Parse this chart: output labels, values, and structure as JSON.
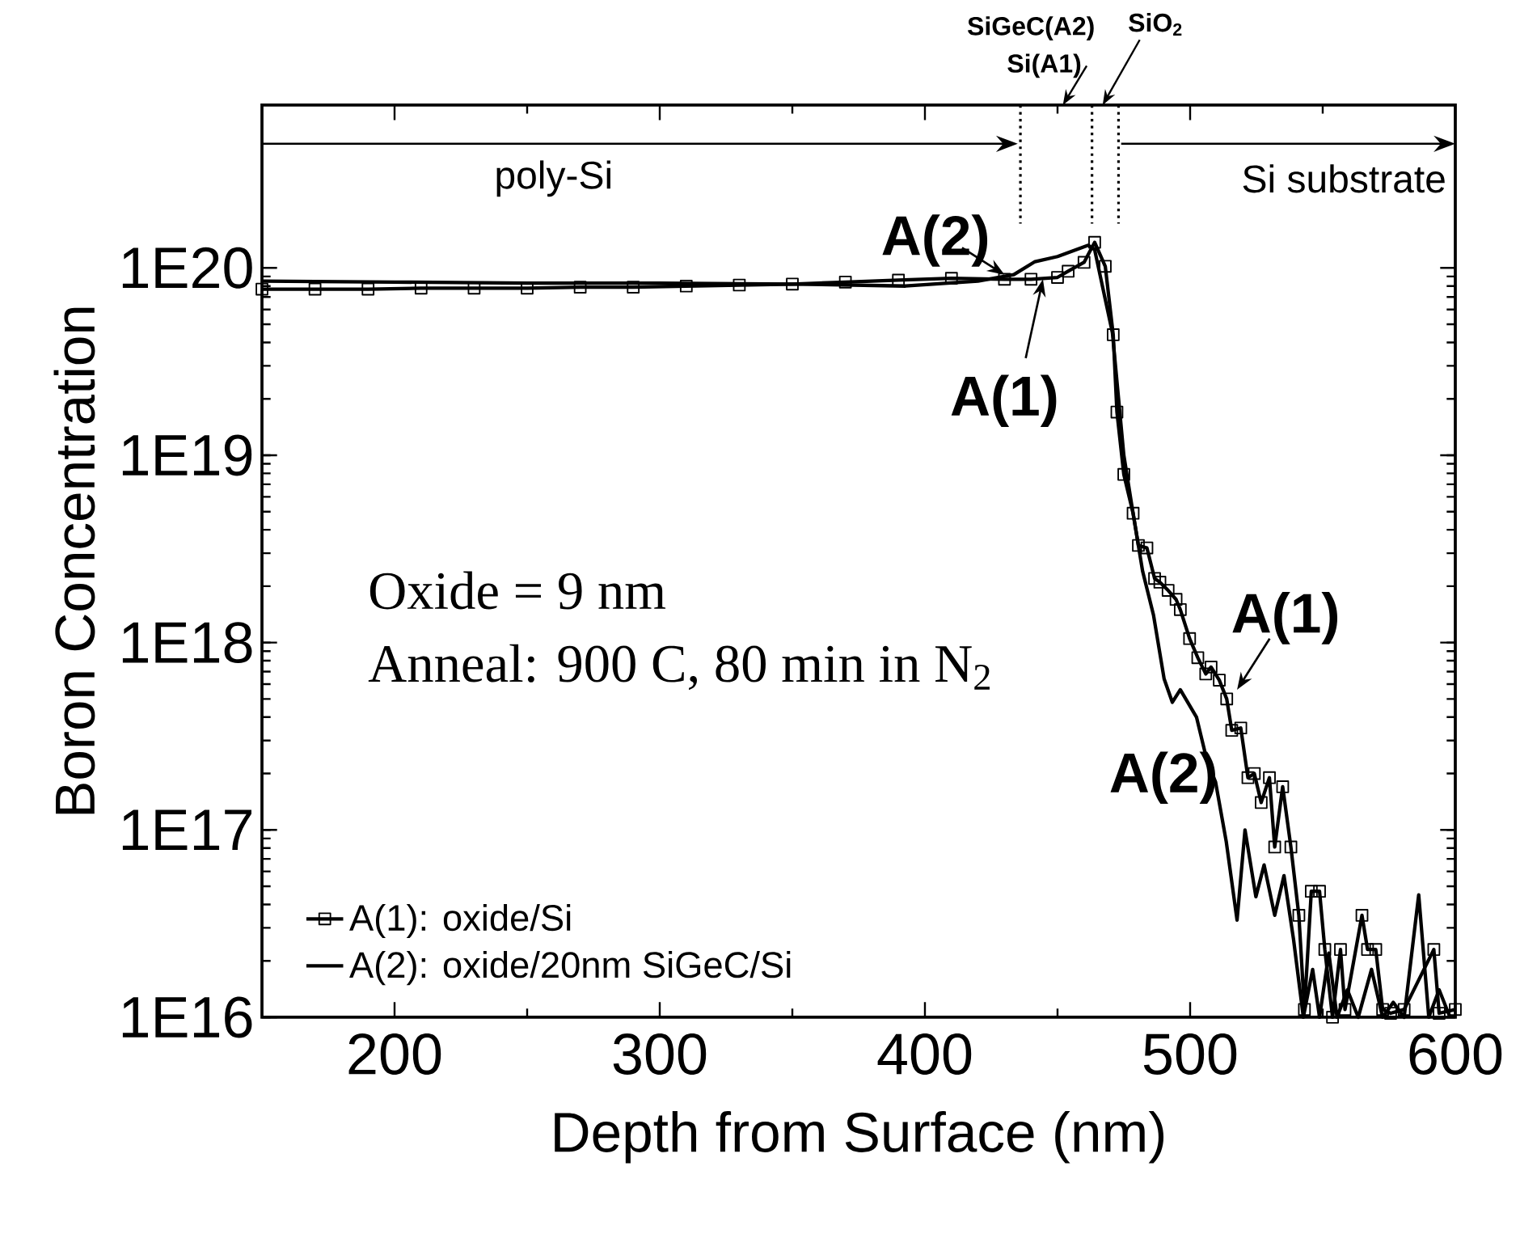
{
  "chart_data": {
    "type": "line",
    "xlabel": "Depth from Surface (nm)",
    "ylabel": "Boron Concentration",
    "log": "y",
    "xlim": [
      150,
      600
    ],
    "ylim": [
      1e+16,
      7.4e+20
    ],
    "xticks": [
      200,
      300,
      400,
      500,
      600
    ],
    "yticks": [
      {
        "value": 1e+16,
        "label": "1E16"
      },
      {
        "value": 1e+17,
        "label": "1E17"
      },
      {
        "value": 1e+18,
        "label": "1E18"
      },
      {
        "value": 1e+19,
        "label": "1E19"
      },
      {
        "value": 1e+20,
        "label": "1E20"
      }
    ],
    "legend": "bottom left",
    "series": [
      {
        "name": "A(1): oxide/Si",
        "color": "#000000",
        "marker": "square",
        "x": [
          150,
          170,
          190,
          210,
          230,
          250,
          270,
          290,
          310,
          330,
          350,
          370,
          390,
          410,
          430,
          440,
          450,
          454,
          460,
          464,
          468,
          471,
          472.4,
          475,
          478.5,
          480.5,
          483.7,
          486.6,
          488.6,
          491.7,
          494.7,
          496.3,
          499.8,
          502.9,
          505.9,
          507.9,
          511,
          513.8,
          515.7,
          519.1,
          521.8,
          524.2,
          526.8,
          529.9,
          531.9,
          534.9,
          538,
          541,
          543.1,
          545.7,
          548.8,
          550.8,
          553.7,
          556.7,
          558.4,
          564.8,
          566.9,
          570,
          572.6,
          575.6,
          580.7,
          591.9,
          593.9,
          600
        ],
        "values": [
          7.7e+19,
          7.7e+19,
          7.7e+19,
          7.8e+19,
          7.8e+19,
          7.8e+19,
          7.9e+19,
          7.9e+19,
          8e+19,
          8.1e+19,
          8.2e+19,
          8.4e+19,
          8.6e+19,
          8.8e+19,
          8.7e+19,
          8.7e+19,
          8.9e+19,
          9.6e+19,
          1.07e+20,
          1.37e+20,
          1.02e+20,
          4.4e+19,
          1.7e+19,
          7.9e+18,
          4.9e+18,
          3.3e+18,
          3.2e+18,
          2.2e+18,
          2.1e+18,
          1.9e+18,
          1.7e+18,
          1.5e+18,
          1.05e+18,
          8.3e+17,
          6.8e+17,
          7.4e+17,
          6.3e+17,
          5e+17,
          3.4e+17,
          3.5e+17,
          1.9e+17,
          2e+17,
          1.4e+17,
          1.9e+17,
          8.1e+16,
          1.7e+17,
          8.1e+16,
          3.5e+16,
          1.1e+16,
          4.7e+16,
          4.7e+16,
          2.3e+16,
          1e+16,
          2.3e+16,
          1.1e+16,
          3.5e+16,
          2.3e+16,
          2.3e+16,
          1.1e+16,
          1.05e+16,
          1.1e+16,
          2.3e+16,
          1.05e+16,
          1.1e+16
        ]
      },
      {
        "name": "A(2): oxide/20nm SiGeC/Si",
        "color": "#000000",
        "marker": "none",
        "x": [
          150,
          200,
          250,
          300,
          350,
          392.7,
          420,
          433.5,
          441.5,
          450,
          461.6,
          464,
          470.7,
          475,
          478,
          482.1,
          486.2,
          490.2,
          493.3,
          496.3,
          502.4,
          506.5,
          509.6,
          513.6,
          517.7,
          520.7,
          524.8,
          527.9,
          531.9,
          535.4,
          539,
          542.7,
          546.2,
          548.8,
          552.3,
          555.4,
          559.3,
          563.4,
          568.4,
          572.6,
          576.6,
          580.7,
          586.2,
          590,
          593.9,
          598
        ],
        "values": [
          8.5e+19,
          8.4e+19,
          8.3e+19,
          8.3e+19,
          8.2e+19,
          8e+19,
          8.5e+19,
          9.2e+19,
          1.08e+20,
          1.15e+20,
          1.32e+20,
          1.25e+20,
          4.5e+19,
          1e+19,
          5.4e+18,
          2.4e+18,
          1.4e+18,
          6.4e+17,
          4.8e+17,
          5.6e+17,
          4e+17,
          2.3e+17,
          1.8e+17,
          8.7e+16,
          3.3e+16,
          1e+17,
          4.4e+16,
          6.5e+16,
          3.5e+16,
          5.7e+16,
          2.6e+16,
          1e+16,
          1.8e+16,
          1e+16,
          2.2e+16,
          1e+16,
          1.4e+16,
          1e+16,
          1.8e+16,
          1e+16,
          1.2e+16,
          1e+16,
          4.5e+16,
          1e+16,
          1.4e+16,
          1e+16
        ]
      }
    ],
    "ref_lines": [
      {
        "axis": "x",
        "value": 436,
        "line_style": "dotted",
        "color": "#000000"
      },
      {
        "axis": "x",
        "value": 463,
        "line_style": "dotted",
        "color": "#000000"
      },
      {
        "axis": "x",
        "value": 473,
        "line_style": "dotted",
        "color": "#000000"
      }
    ],
    "annotations": [
      "SiGeC(A2)",
      "Si(A1)",
      "SiO$_{2}$",
      "poly-Si",
      "Si substrate",
      "Oxide = 9 nm",
      "Anneal: 900 C, 80 min in N$_{2}$",
      {
        "text": "A(2)",
        "x": 430,
        "y": 9.2e+19
      },
      {
        "text": "A(1)",
        "x": 444.5,
        "y": 8.7e+19
      },
      {
        "text": "A(1)",
        "x": 517.7,
        "y": 5.6e+17
      },
      "A(2)"
    ]
  }
}
